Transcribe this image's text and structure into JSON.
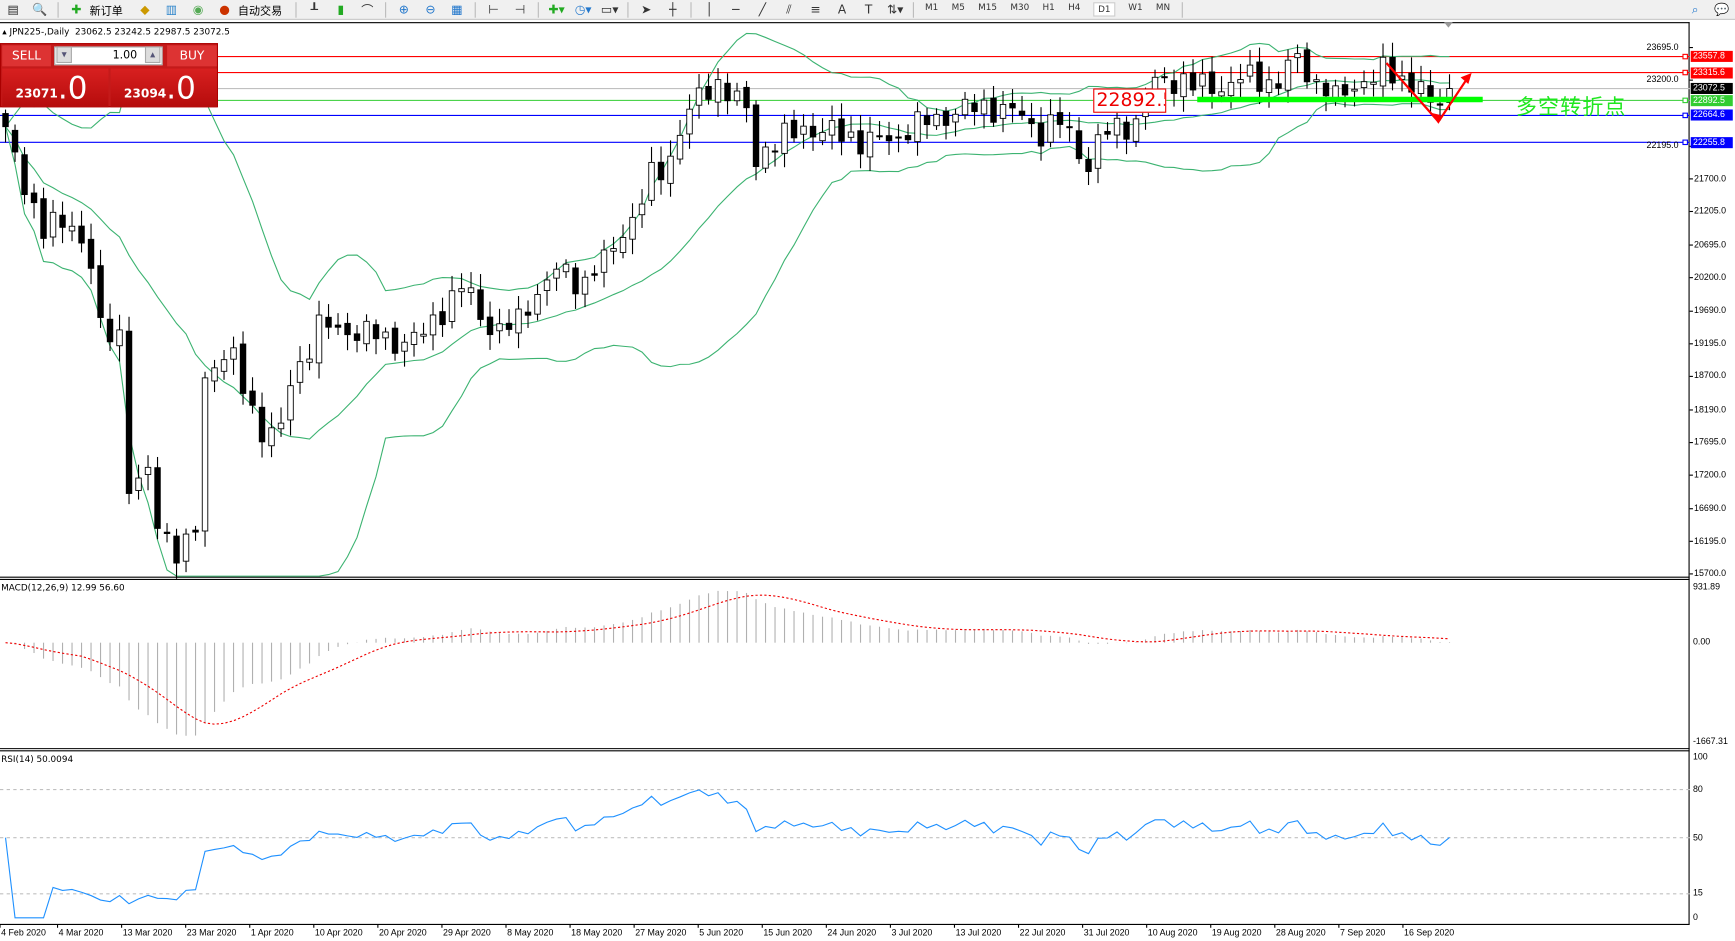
{
  "toolbar": {
    "new_order": "新订单",
    "auto_trading": "自动交易",
    "timeframes": [
      "M1",
      "M5",
      "M15",
      "M30",
      "H1",
      "H4",
      "D1",
      "W1",
      "MN"
    ],
    "active_timeframe": "D1"
  },
  "chart": {
    "header": "JPN225-,Daily  23062.5 23242.5 22987.5 23072.5",
    "macd_label": "MACD(12,26,9) 12.99 56.60",
    "rsi_label": "RSI(14) 50.0094"
  },
  "trade_panel": {
    "sell": "SELL",
    "buy": "BUY",
    "volume": "1.00",
    "bid_main": "23071",
    "bid_frac": ".0",
    "ask_main": "23094",
    "ask_frac": ".0"
  },
  "price_axis": {
    "ticks": [
      "23695.0",
      "23200.0",
      "22195.0",
      "21700.0",
      "21205.0",
      "20695.0",
      "20200.0",
      "19690.0",
      "19195.0",
      "18700.0",
      "18190.0",
      "17695.0",
      "17200.0",
      "16690.0",
      "16195.0",
      "15700.0"
    ],
    "range": [
      15700,
      23695
    ]
  },
  "levels": [
    {
      "price": "23557.8",
      "color": "#ff0000"
    },
    {
      "price": "23315.6",
      "color": "#ff0000"
    },
    {
      "price": "23072.5",
      "color": "#000000",
      "line": "#c0c0c0"
    },
    {
      "price": "22892.5",
      "color": "#32cd32"
    },
    {
      "price": "22664.6",
      "color": "#0000ff"
    },
    {
      "price": "22255.8",
      "color": "#0000ff"
    }
  ],
  "annotations": {
    "level_box": "22892.5",
    "pivot_text": "多空转折点",
    "pivot_color": "#1fe81f",
    "arrow_color": "#ff0000"
  },
  "macd_axis": {
    "max": "931.89",
    "zero": "0.00",
    "min": "-1667.31"
  },
  "rsi_axis": {
    "ticks": [
      "100",
      "80",
      "50",
      "15",
      "0"
    ]
  },
  "date_axis": [
    "4 Feb 2020",
    "4 Mar 2020",
    "13 Mar 2020",
    "23 Mar 2020",
    "1 Apr 2020",
    "10 Apr 2020",
    "20 Apr 2020",
    "29 Apr 2020",
    "8 May 2020",
    "18 May 2020",
    "27 May 2020",
    "5 Jun 2020",
    "15 Jun 2020",
    "24 Jun 2020",
    "3 Jul 2020",
    "13 Jul 2020",
    "22 Jul 2020",
    "31 Jul 2020",
    "10 Aug 2020",
    "19 Aug 2020",
    "28 Aug 2020",
    "7 Sep 2020",
    "16 Sep 2020"
  ],
  "chart_data": {
    "type": "candlestick",
    "symbol": "JPN225",
    "timeframe": "Daily",
    "indicators": [
      "Bollinger Bands",
      "MACD(12,26,9)",
      "RSI(14)"
    ],
    "approx_closes": [
      [
        "2020-02-24",
        22403
      ],
      [
        "2020-02-28",
        20891
      ],
      [
        "2020-03-04",
        21059
      ],
      [
        "2020-03-09",
        19379
      ],
      [
        "2020-03-11",
        19379
      ],
      [
        "2020-03-12",
        17027
      ],
      [
        "2020-03-16",
        17200
      ],
      [
        "2020-03-17",
        16523
      ],
      [
        "2020-03-19",
        16019
      ],
      [
        "2020-03-23",
        16355
      ],
      [
        "2020-03-24",
        18707
      ],
      [
        "2020-03-26",
        19043
      ],
      [
        "2020-03-30",
        18539
      ],
      [
        "2020-04-01",
        17867
      ],
      [
        "2020-04-03",
        17867
      ],
      [
        "2020-04-07",
        18875
      ],
      [
        "2020-04-09",
        19463
      ],
      [
        "2020-04-15",
        19379
      ],
      [
        "2020-04-22",
        19211
      ],
      [
        "2020-04-27",
        19547
      ],
      [
        "2020-04-30",
        20051
      ],
      [
        "2020-05-06",
        19379
      ],
      [
        "2020-05-11",
        19799
      ],
      [
        "2020-05-14",
        20303
      ],
      [
        "2020-05-19",
        20135
      ],
      [
        "2020-05-22",
        20639
      ],
      [
        "2020-05-26",
        21059
      ],
      [
        "2020-05-28",
        21731
      ],
      [
        "2020-06-01",
        22067
      ],
      [
        "2020-06-03",
        22739
      ],
      [
        "2020-06-05",
        23075
      ],
      [
        "2020-06-08",
        23159
      ],
      [
        "2020-06-11",
        22739
      ],
      [
        "2020-06-12",
        21983
      ],
      [
        "2020-06-16",
        22235
      ],
      [
        "2020-06-19",
        22487
      ],
      [
        "2020-06-24",
        22403
      ],
      [
        "2020-06-29",
        22269
      ],
      [
        "2020-07-03",
        22319
      ],
      [
        "2020-07-08",
        22571
      ],
      [
        "2020-07-13",
        22739
      ],
      [
        "2020-07-16",
        22790
      ],
      [
        "2020-07-21",
        22739
      ],
      [
        "2020-07-24",
        22403
      ],
      [
        "2020-07-28",
        22571
      ],
      [
        "2020-07-31",
        21899
      ],
      [
        "2020-08-04",
        22403
      ],
      [
        "2020-08-07",
        22571
      ],
      [
        "2020-08-11",
        23159
      ],
      [
        "2020-08-14",
        23210
      ],
      [
        "2020-08-19",
        23075
      ],
      [
        "2020-08-24",
        23243
      ],
      [
        "2020-08-28",
        23159
      ],
      [
        "2020-09-01",
        23495
      ],
      [
        "2020-09-03",
        23159
      ],
      [
        "2020-09-07",
        22907
      ],
      [
        "2020-09-10",
        23210
      ],
      [
        "2020-09-14",
        23327
      ],
      [
        "2020-09-18",
        23110
      ],
      [
        "2020-09-21",
        22739
      ],
      [
        "2020-09-23",
        23072.5
      ]
    ]
  }
}
